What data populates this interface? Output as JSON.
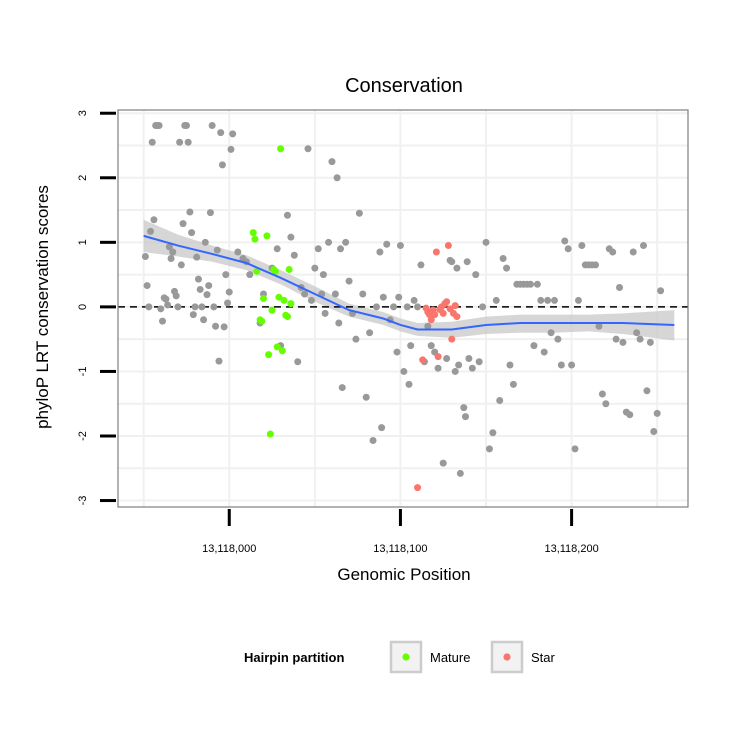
{
  "colors": {
    "background_point": "#999999",
    "mature": "#66ff00",
    "star": "#f8766d",
    "smooth_line": "#3366ff",
    "ribbon": "#c8c8c8",
    "grid": "#f0f0f0",
    "panel_border": "#7f7f7f"
  },
  "chart_data": {
    "type": "scatter",
    "title": "Conservation",
    "xlabel": "Genomic Position",
    "ylabel": "phyloP LRT conservation scores",
    "xlim": [
      13117935,
      13118268
    ],
    "ylim": [
      -3.1,
      3.05
    ],
    "x_ticks": [
      13118000,
      13118100,
      13118200
    ],
    "x_tick_labels": [
      "13,118,000",
      "13,118,100",
      "13,118,200"
    ],
    "y_ticks": [
      -3,
      -2,
      -1,
      0,
      1,
      2,
      3
    ],
    "y_tick_labels": [
      "-3",
      "-2",
      "-1",
      "0",
      "1",
      "2",
      "3"
    ],
    "reference_line": {
      "y": 0,
      "style": "dashed"
    },
    "grid": true,
    "legend": {
      "title": "Hairpin partition",
      "placement": "bottom",
      "entries": [
        "Mature",
        "Star"
      ]
    },
    "series": [
      {
        "role": "background",
        "points": [
          [
            13117951,
            0.78
          ],
          [
            13117952,
            0.33
          ],
          [
            13117953,
            0.0
          ],
          [
            13117954,
            1.17
          ],
          [
            13117955,
            2.55
          ],
          [
            13117956,
            1.35
          ],
          [
            13117957,
            2.81
          ],
          [
            13117958,
            2.81
          ],
          [
            13117959,
            2.81
          ],
          [
            13117960,
            -0.03
          ],
          [
            13117961,
            -0.22
          ],
          [
            13117962,
            0.14
          ],
          [
            13117963,
            0.12
          ],
          [
            13117964,
            0.03
          ],
          [
            13117965,
            0.93
          ],
          [
            13117966,
            0.75
          ],
          [
            13117967,
            0.85
          ],
          [
            13117968,
            0.24
          ],
          [
            13117969,
            0.17
          ],
          [
            13117970,
            0.0
          ],
          [
            13117971,
            2.55
          ],
          [
            13117972,
            0.65
          ],
          [
            13117973,
            1.29
          ],
          [
            13117974,
            2.81
          ],
          [
            13117975,
            2.81
          ],
          [
            13117976,
            2.55
          ],
          [
            13117977,
            1.47
          ],
          [
            13117978,
            1.15
          ],
          [
            13117979,
            -0.12
          ],
          [
            13117980,
            0.0
          ],
          [
            13117981,
            0.77
          ],
          [
            13117982,
            0.43
          ],
          [
            13117983,
            0.27
          ],
          [
            13117984,
            0.0
          ],
          [
            13117985,
            -0.2
          ],
          [
            13117986,
            1.0
          ],
          [
            13117987,
            0.19
          ],
          [
            13117988,
            0.33
          ],
          [
            13117989,
            1.46
          ],
          [
            13117990,
            2.81
          ],
          [
            13117991,
            0.0
          ],
          [
            13117992,
            -0.3
          ],
          [
            13117993,
            0.88
          ],
          [
            13117994,
            -0.84
          ],
          [
            13117995,
            2.7
          ],
          [
            13117996,
            2.2
          ],
          [
            13117997,
            -0.31
          ],
          [
            13117998,
            0.5
          ],
          [
            13117999,
            0.06
          ],
          [
            13118000,
            0.23
          ],
          [
            13118001,
            2.44
          ],
          [
            13118002,
            2.68
          ],
          [
            13118005,
            0.85
          ],
          [
            13118008,
            0.75
          ],
          [
            13118010,
            0.7
          ],
          [
            13118012,
            0.5
          ],
          [
            13118018,
            -0.25
          ],
          [
            13118020,
            0.2
          ],
          [
            13118025,
            0.6
          ],
          [
            13118028,
            0.9
          ],
          [
            13118030,
            -0.6
          ],
          [
            13118034,
            1.42
          ],
          [
            13118036,
            1.08
          ],
          [
            13118038,
            0.8
          ],
          [
            13118040,
            -0.85
          ],
          [
            13118042,
            0.3
          ],
          [
            13118044,
            0.2
          ],
          [
            13118046,
            2.45
          ],
          [
            13118048,
            0.1
          ],
          [
            13118050,
            0.6
          ],
          [
            13118052,
            0.9
          ],
          [
            13118054,
            0.2
          ],
          [
            13118055,
            0.5
          ],
          [
            13118056,
            -0.1
          ],
          [
            13118058,
            1.0
          ],
          [
            13118060,
            2.25
          ],
          [
            13118062,
            0.2
          ],
          [
            13118063,
            2.0
          ],
          [
            13118064,
            -0.25
          ],
          [
            13118065,
            0.9
          ],
          [
            13118066,
            -1.25
          ],
          [
            13118068,
            1.0
          ],
          [
            13118070,
            0.4
          ],
          [
            13118072,
            -0.1
          ],
          [
            13118074,
            -0.5
          ],
          [
            13118076,
            1.45
          ],
          [
            13118078,
            0.2
          ],
          [
            13118080,
            -1.4
          ],
          [
            13118082,
            -0.4
          ],
          [
            13118084,
            -2.07
          ],
          [
            13118086,
            0.0
          ],
          [
            13118088,
            0.85
          ],
          [
            13118089,
            -1.87
          ],
          [
            13118090,
            0.15
          ],
          [
            13118092,
            0.97
          ],
          [
            13118094,
            -0.2
          ],
          [
            13118096,
            0.0
          ],
          [
            13118098,
            -0.7
          ],
          [
            13118099,
            0.15
          ],
          [
            13118100,
            0.95
          ],
          [
            13118102,
            -1.0
          ],
          [
            13118104,
            0.0
          ],
          [
            13118105,
            -1.2
          ],
          [
            13118106,
            -0.6
          ],
          [
            13118108,
            0.1
          ],
          [
            13118110,
            0.0
          ],
          [
            13118112,
            0.65
          ],
          [
            13118114,
            -0.85
          ],
          [
            13118116,
            -0.3
          ],
          [
            13118118,
            -0.6
          ],
          [
            13118120,
            -0.7
          ],
          [
            13118122,
            -0.95
          ],
          [
            13118125,
            -2.42
          ],
          [
            13118127,
            -0.8
          ],
          [
            13118129,
            0.72
          ],
          [
            13118130,
            0.7
          ],
          [
            13118132,
            -1.0
          ],
          [
            13118133,
            0.6
          ],
          [
            13118134,
            -0.9
          ],
          [
            13118135,
            -2.58
          ],
          [
            13118137,
            -1.56
          ],
          [
            13118138,
            -1.7
          ],
          [
            13118139,
            0.7
          ],
          [
            13118140,
            -0.8
          ],
          [
            13118142,
            -0.95
          ],
          [
            13118144,
            0.5
          ],
          [
            13118146,
            -0.85
          ],
          [
            13118148,
            0.0
          ],
          [
            13118150,
            1.0
          ],
          [
            13118152,
            -2.2
          ],
          [
            13118154,
            -1.95
          ],
          [
            13118156,
            0.1
          ],
          [
            13118158,
            -1.45
          ],
          [
            13118160,
            0.75
          ],
          [
            13118162,
            0.6
          ],
          [
            13118164,
            -0.9
          ],
          [
            13118166,
            -1.2
          ],
          [
            13118168,
            0.35
          ],
          [
            13118170,
            0.35
          ],
          [
            13118172,
            0.35
          ],
          [
            13118174,
            0.35
          ],
          [
            13118176,
            0.35
          ],
          [
            13118178,
            -0.6
          ],
          [
            13118180,
            0.35
          ],
          [
            13118182,
            0.1
          ],
          [
            13118184,
            -0.7
          ],
          [
            13118186,
            0.1
          ],
          [
            13118188,
            -0.4
          ],
          [
            13118190,
            0.1
          ],
          [
            13118192,
            -0.5
          ],
          [
            13118194,
            -0.9
          ],
          [
            13118196,
            1.02
          ],
          [
            13118198,
            0.9
          ],
          [
            13118200,
            -0.9
          ],
          [
            13118202,
            -2.2
          ],
          [
            13118204,
            0.1
          ],
          [
            13118206,
            0.95
          ],
          [
            13118208,
            0.65
          ],
          [
            13118210,
            0.65
          ],
          [
            13118212,
            0.65
          ],
          [
            13118214,
            0.65
          ],
          [
            13118216,
            -0.3
          ],
          [
            13118218,
            -1.35
          ],
          [
            13118220,
            -1.5
          ],
          [
            13118222,
            0.9
          ],
          [
            13118224,
            0.85
          ],
          [
            13118226,
            -0.5
          ],
          [
            13118228,
            0.3
          ],
          [
            13118230,
            -0.55
          ],
          [
            13118232,
            -1.63
          ],
          [
            13118234,
            -1.67
          ],
          [
            13118236,
            0.85
          ],
          [
            13118238,
            -0.4
          ],
          [
            13118240,
            -0.5
          ],
          [
            13118242,
            0.95
          ],
          [
            13118244,
            -1.3
          ],
          [
            13118246,
            -0.55
          ],
          [
            13118248,
            -1.93
          ],
          [
            13118250,
            -1.65
          ],
          [
            13118252,
            0.25
          ]
        ]
      },
      {
        "name": "Mature",
        "points": [
          [
            13118014,
            1.15
          ],
          [
            13118015,
            1.05
          ],
          [
            13118016,
            0.55
          ],
          [
            13118018,
            -0.2
          ],
          [
            13118019,
            -0.22
          ],
          [
            13118020,
            0.13
          ],
          [
            13118022,
            1.1
          ],
          [
            13118023,
            -0.74
          ],
          [
            13118024,
            -1.97
          ],
          [
            13118025,
            -0.05
          ],
          [
            13118026,
            0.58
          ],
          [
            13118027,
            0.55
          ],
          [
            13118028,
            -0.62
          ],
          [
            13118029,
            0.15
          ],
          [
            13118030,
            2.45
          ],
          [
            13118031,
            -0.68
          ],
          [
            13118032,
            0.1
          ],
          [
            13118033,
            -0.13
          ],
          [
            13118034,
            -0.15
          ],
          [
            13118035,
            0.58
          ],
          [
            13118036,
            0.05
          ]
        ]
      },
      {
        "name": "Star",
        "points": [
          [
            13118113,
            -0.82
          ],
          [
            13118115,
            -0.02
          ],
          [
            13118116,
            -0.08
          ],
          [
            13118117,
            -0.12
          ],
          [
            13118118,
            -0.2
          ],
          [
            13118119,
            -0.05
          ],
          [
            13118120,
            -0.12
          ],
          [
            13118121,
            0.85
          ],
          [
            13118122,
            -0.77
          ],
          [
            13118123,
            -0.04
          ],
          [
            13118124,
            0.0
          ],
          [
            13118125,
            -0.1
          ],
          [
            13118126,
            0.05
          ],
          [
            13118127,
            0.08
          ],
          [
            13118128,
            0.95
          ],
          [
            13118129,
            -0.03
          ],
          [
            13118130,
            -0.5
          ],
          [
            13118131,
            -0.1
          ],
          [
            13118132,
            0.02
          ],
          [
            13118133,
            -0.15
          ],
          [
            13118110,
            -2.8
          ]
        ]
      }
    ],
    "smooth": [
      [
        13117950,
        1.1,
        0.85,
        1.35
      ],
      [
        13117970,
        0.95,
        0.78,
        1.12
      ],
      [
        13117990,
        0.82,
        0.7,
        0.95
      ],
      [
        13118010,
        0.68,
        0.57,
        0.8
      ],
      [
        13118030,
        0.45,
        0.35,
        0.57
      ],
      [
        13118050,
        0.2,
        0.08,
        0.32
      ],
      [
        13118070,
        -0.05,
        -0.15,
        0.05
      ],
      [
        13118090,
        -0.18,
        -0.28,
        -0.08
      ],
      [
        13118100,
        -0.28,
        -0.38,
        -0.18
      ],
      [
        13118110,
        -0.35,
        -0.45,
        -0.25
      ],
      [
        13118130,
        -0.35,
        -0.48,
        -0.23
      ],
      [
        13118150,
        -0.28,
        -0.42,
        -0.15
      ],
      [
        13118170,
        -0.25,
        -0.4,
        -0.12
      ],
      [
        13118190,
        -0.25,
        -0.4,
        -0.12
      ],
      [
        13118210,
        -0.25,
        -0.38,
        -0.12
      ],
      [
        13118230,
        -0.25,
        -0.42,
        -0.1
      ],
      [
        13118260,
        -0.28,
        -0.52,
        -0.05
      ]
    ]
  }
}
